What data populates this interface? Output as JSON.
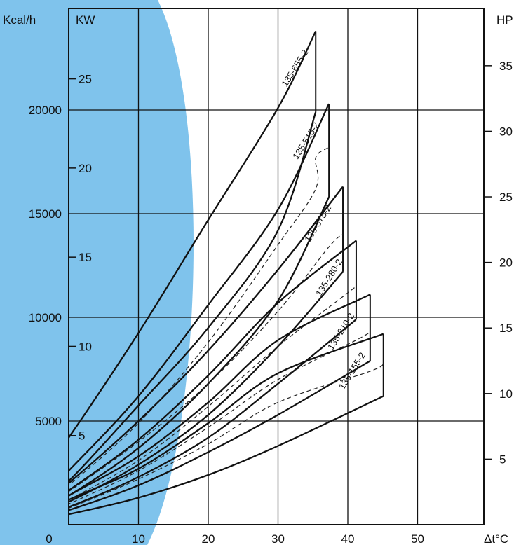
{
  "background_color": "#ffffff",
  "accent_color": "#7fc3ec",
  "chart_data": {
    "type": "line",
    "title": "",
    "x_axis": {
      "label": "Δt°C",
      "ticks": [
        {
          "value": 0,
          "label": "0"
        },
        {
          "value": 10,
          "label": "10"
        },
        {
          "value": 20,
          "label": "20"
        },
        {
          "value": 30,
          "label": "30"
        },
        {
          "value": 40,
          "label": "40"
        },
        {
          "value": 50,
          "label": "50"
        }
      ],
      "range": [
        0,
        50
      ]
    },
    "y_axis_left_kcal": {
      "label": "Kcal/h",
      "ticks": [
        {
          "value": 5000,
          "label": "5000"
        },
        {
          "value": 10000,
          "label": "10000"
        },
        {
          "value": 15000,
          "label": "15000"
        },
        {
          "value": 20000,
          "label": "20000"
        }
      ],
      "range": [
        0,
        25000
      ]
    },
    "y_axis_left_kw": {
      "label": "KW",
      "ticks": [
        {
          "value": 5,
          "label": "5"
        },
        {
          "value": 10,
          "label": "10"
        },
        {
          "value": 15,
          "label": "15"
        },
        {
          "value": 20,
          "label": "20"
        },
        {
          "value": 25,
          "label": "25"
        }
      ]
    },
    "y_axis_right_hp": {
      "label": "HP",
      "ticks": [
        {
          "value": 5,
          "label": "5"
        },
        {
          "value": 10,
          "label": "10"
        },
        {
          "value": 15,
          "label": "15"
        },
        {
          "value": 20,
          "label": "20"
        },
        {
          "value": 25,
          "label": "25"
        },
        {
          "value": 30,
          "label": "30"
        },
        {
          "value": 35,
          "label": "35"
        }
      ]
    },
    "grid": true,
    "series": [
      {
        "name": "135-655-2",
        "upper": [
          [
            -6.9,
            1050
          ],
          [
            0,
            4200
          ],
          [
            10,
            9250
          ],
          [
            20,
            14700
          ],
          [
            30,
            20100
          ],
          [
            35.4,
            23800
          ]
        ],
        "lower": [
          [
            -5.5,
            600
          ],
          [
            0,
            2100
          ],
          [
            10,
            5750
          ],
          [
            20,
            9500
          ],
          [
            30,
            14200
          ],
          [
            35.4,
            19900
          ]
        ],
        "dashed": []
      },
      {
        "name": "135-515-2",
        "upper": [
          [
            -6.0,
            600
          ],
          [
            0,
            2600
          ],
          [
            10,
            6200
          ],
          [
            20,
            10600
          ],
          [
            30,
            15200
          ],
          [
            37.3,
            20300
          ]
        ],
        "lower": [
          [
            -5.5,
            500
          ],
          [
            0,
            1400
          ],
          [
            10,
            3700
          ],
          [
            20,
            6800
          ],
          [
            30,
            10800
          ],
          [
            37.3,
            15800
          ]
        ],
        "dashed": [
          [
            -5.2,
            600
          ],
          [
            0,
            1900
          ],
          [
            10,
            4900
          ],
          [
            20,
            8800
          ],
          [
            30,
            13500
          ],
          [
            35.4,
            16200
          ],
          [
            35.4,
            17700
          ],
          [
            37.3,
            18200
          ]
        ]
      },
      {
        "name": "135-375-2",
        "upper": [
          [
            -5.8,
            450
          ],
          [
            0,
            2000
          ],
          [
            10,
            5000
          ],
          [
            20,
            8400
          ],
          [
            30,
            12300
          ],
          [
            39.3,
            16300
          ]
        ],
        "lower": [
          [
            -5.5,
            400
          ],
          [
            0,
            1100
          ],
          [
            10,
            2900
          ],
          [
            20,
            5300
          ],
          [
            30,
            8600
          ],
          [
            39.3,
            12200
          ]
        ],
        "dashed": [
          [
            -5.3,
            500
          ],
          [
            0,
            1600
          ],
          [
            10,
            4000
          ],
          [
            20,
            6800
          ],
          [
            30,
            10300
          ],
          [
            37.3,
            13400
          ],
          [
            39.3,
            14000
          ]
        ]
      },
      {
        "name": "135-280-2",
        "upper": [
          [
            -5.6,
            350
          ],
          [
            0,
            1650
          ],
          [
            10,
            4100
          ],
          [
            20,
            7200
          ],
          [
            30,
            10700
          ],
          [
            41.2,
            13700
          ]
        ],
        "lower": [
          [
            -5.3,
            300
          ],
          [
            0,
            850
          ],
          [
            10,
            2300
          ],
          [
            20,
            4200
          ],
          [
            30,
            6800
          ],
          [
            41.2,
            9900
          ]
        ],
        "dashed": [
          [
            -5.2,
            400
          ],
          [
            0,
            1200
          ],
          [
            10,
            3100
          ],
          [
            20,
            5700
          ],
          [
            30,
            8600
          ],
          [
            39.3,
            11000
          ],
          [
            41.2,
            11500
          ]
        ]
      },
      {
        "name": "135-210-2",
        "upper": [
          [
            -5.4,
            300
          ],
          [
            0,
            1400
          ],
          [
            10,
            3300
          ],
          [
            20,
            5900
          ],
          [
            30,
            8900
          ],
          [
            43.2,
            11100
          ]
        ],
        "lower": [
          [
            -5.2,
            250
          ],
          [
            0,
            700
          ],
          [
            10,
            1900
          ],
          [
            20,
            3500
          ],
          [
            30,
            5300
          ],
          [
            43.2,
            7900
          ]
        ],
        "dashed": [
          [
            -5.0,
            350
          ],
          [
            0,
            1000
          ],
          [
            10,
            2600
          ],
          [
            20,
            4700
          ],
          [
            30,
            7000
          ],
          [
            41.2,
            8900
          ],
          [
            43.2,
            9300
          ]
        ]
      },
      {
        "name": "135-155-2",
        "upper": [
          [
            -5.2,
            250
          ],
          [
            0,
            1200
          ],
          [
            10,
            2700
          ],
          [
            20,
            4900
          ],
          [
            30,
            7300
          ],
          [
            45.1,
            9200
          ]
        ],
        "lower": [
          [
            -5.0,
            200
          ],
          [
            0,
            500
          ],
          [
            10,
            1300
          ],
          [
            20,
            2400
          ],
          [
            30,
            3800
          ],
          [
            45.1,
            6200
          ]
        ],
        "dashed": [
          [
            -4.9,
            300
          ],
          [
            0,
            800
          ],
          [
            10,
            2200
          ],
          [
            20,
            3900
          ],
          [
            30,
            5900
          ],
          [
            43.2,
            7400
          ],
          [
            45.1,
            7800
          ]
        ]
      }
    ]
  }
}
